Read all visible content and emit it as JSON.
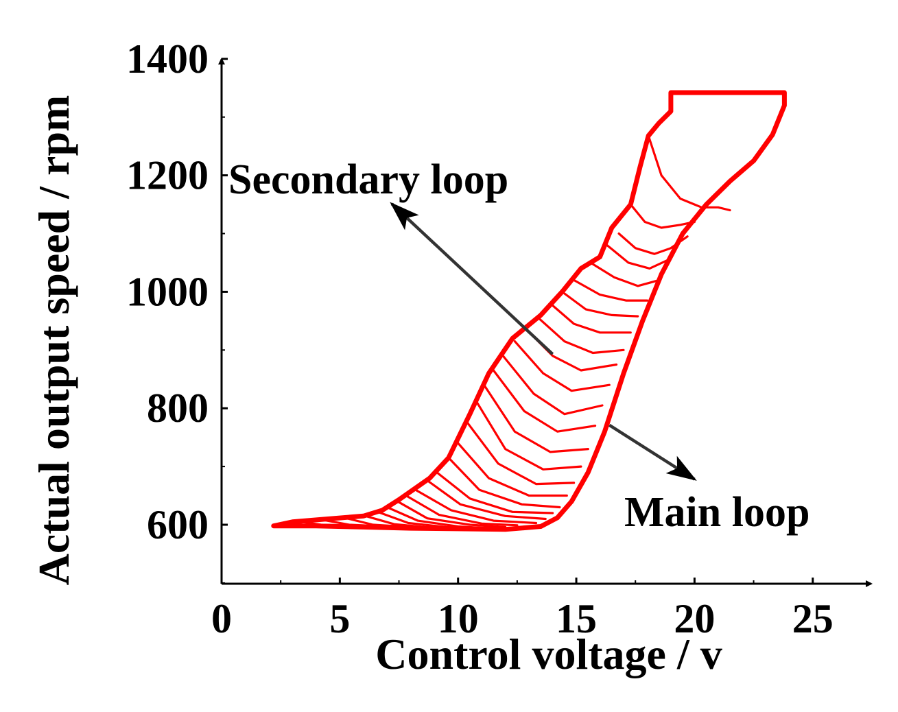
{
  "chart_data": {
    "type": "line",
    "title": "",
    "xlabel": "Control voltage / v",
    "ylabel": "Actual output speed  / rpm",
    "xlim": [
      0,
      27
    ],
    "ylim": [
      500,
      1400
    ],
    "xticks": [
      {
        "value": 0,
        "label": "0"
      },
      {
        "value": 5,
        "label": "5"
      },
      {
        "value": 10,
        "label": "10"
      },
      {
        "value": 15,
        "label": "15"
      },
      {
        "value": 20,
        "label": "20"
      },
      {
        "value": 25,
        "label": "25"
      }
    ],
    "yticks": [
      {
        "value": 600,
        "label": "600"
      },
      {
        "value": 800,
        "label": "800"
      },
      {
        "value": 1000,
        "label": "1000"
      },
      {
        "value": 1200,
        "label": "1200"
      },
      {
        "value": 1400,
        "label": "1400"
      }
    ],
    "grid": false,
    "line_color": "#ff0000",
    "annotations": [
      {
        "text": "Secondary loop",
        "arrow_from": [
          14,
          893
        ],
        "arrow_to": [
          7.2,
          1151
        ]
      },
      {
        "text": "Main loop",
        "arrow_from": [
          16.4,
          771
        ],
        "arrow_to": [
          20,
          678
        ]
      }
    ],
    "series": [
      {
        "name": "Main loop",
        "role": "main",
        "points": [
          [
            2.2,
            598
          ],
          [
            4,
            598
          ],
          [
            6,
            596
          ],
          [
            8,
            594
          ],
          [
            10,
            593
          ],
          [
            12,
            592
          ],
          [
            13.5,
            597
          ],
          [
            14.2,
            612
          ],
          [
            14.8,
            640
          ],
          [
            15.5,
            690
          ],
          [
            16.2,
            760
          ],
          [
            17,
            860
          ],
          [
            17.8,
            950
          ],
          [
            18.6,
            1030
          ],
          [
            19.5,
            1100
          ],
          [
            20.5,
            1150
          ],
          [
            21.5,
            1190
          ],
          [
            22.5,
            1225
          ],
          [
            23.3,
            1270
          ],
          [
            23.8,
            1320
          ],
          [
            23.8,
            1342
          ],
          [
            21.5,
            1342
          ],
          [
            19,
            1342
          ],
          [
            19,
            1310
          ],
          [
            18.5,
            1290
          ],
          [
            18.05,
            1268
          ],
          [
            17.7,
            1215
          ],
          [
            17.3,
            1150
          ],
          [
            16.5,
            1110
          ],
          [
            16,
            1060
          ],
          [
            15.2,
            1040
          ],
          [
            14.4,
            1000
          ],
          [
            13.5,
            960
          ],
          [
            12.3,
            920
          ],
          [
            11.3,
            860
          ],
          [
            10.5,
            790
          ],
          [
            9.6,
            715
          ],
          [
            8.8,
            680
          ],
          [
            7.5,
            643
          ],
          [
            6.8,
            625
          ],
          [
            6,
            615
          ],
          [
            4.5,
            610
          ],
          [
            3,
            605
          ],
          [
            2.2,
            598
          ]
        ]
      },
      {
        "name": "Secondary loop 1",
        "role": "secondary",
        "points": [
          [
            18.05,
            1268
          ],
          [
            18.6,
            1200
          ],
          [
            19.4,
            1160
          ],
          [
            20.3,
            1145
          ],
          [
            21,
            1145
          ],
          [
            21.5,
            1140
          ]
        ]
      },
      {
        "name": "Secondary loop 2",
        "role": "secondary",
        "points": [
          [
            17.3,
            1150
          ],
          [
            17.9,
            1120
          ],
          [
            18.6,
            1110
          ],
          [
            19.4,
            1115
          ],
          [
            20,
            1120
          ]
        ]
      },
      {
        "name": "Secondary loop 3",
        "role": "secondary",
        "points": [
          [
            16.8,
            1100
          ],
          [
            17.5,
            1075
          ],
          [
            18.3,
            1065
          ],
          [
            19,
            1075
          ],
          [
            19.7,
            1095
          ]
        ]
      },
      {
        "name": "Secondary loop 4",
        "role": "secondary",
        "points": [
          [
            16.3,
            1080
          ],
          [
            17.2,
            1050
          ],
          [
            18.1,
            1040
          ],
          [
            18.9,
            1055
          ]
        ]
      },
      {
        "name": "Secondary loop 5",
        "role": "secondary",
        "points": [
          [
            15.6,
            1050
          ],
          [
            16.6,
            1025
          ],
          [
            17.6,
            1010
          ],
          [
            18.5,
            1020
          ]
        ]
      },
      {
        "name": "Secondary loop 6",
        "role": "secondary",
        "points": [
          [
            14.9,
            1020
          ],
          [
            16,
            995
          ],
          [
            17.1,
            985
          ],
          [
            18,
            985
          ]
        ]
      },
      {
        "name": "Secondary loop 7",
        "role": "secondary",
        "points": [
          [
            14.4,
            1000
          ],
          [
            15.4,
            970
          ],
          [
            16.5,
            960
          ],
          [
            17.6,
            958
          ]
        ]
      },
      {
        "name": "Secondary loop 8",
        "role": "secondary",
        "points": [
          [
            13.9,
            980
          ],
          [
            14.9,
            945
          ],
          [
            16,
            930
          ],
          [
            17.3,
            930
          ]
        ]
      },
      {
        "name": "Secondary loop 9",
        "role": "secondary",
        "points": [
          [
            13.4,
            955
          ],
          [
            14.5,
            915
          ],
          [
            15.7,
            895
          ],
          [
            17,
            900
          ]
        ]
      },
      {
        "name": "Secondary loop 10",
        "role": "secondary",
        "points": [
          [
            12.9,
            935
          ],
          [
            14,
            890
          ],
          [
            15.2,
            865
          ],
          [
            16.7,
            875
          ]
        ]
      },
      {
        "name": "Secondary loop 11",
        "role": "secondary",
        "points": [
          [
            12.4,
            915
          ],
          [
            13.6,
            860
          ],
          [
            14.8,
            830
          ],
          [
            16.4,
            840
          ]
        ]
      },
      {
        "name": "Secondary loop 12",
        "role": "secondary",
        "points": [
          [
            11.9,
            890
          ],
          [
            13.2,
            825
          ],
          [
            14.5,
            790
          ],
          [
            16.1,
            805
          ]
        ]
      },
      {
        "name": "Secondary loop 13",
        "role": "secondary",
        "points": [
          [
            11.5,
            865
          ],
          [
            12.8,
            795
          ],
          [
            14.2,
            760
          ],
          [
            15.8,
            770
          ]
        ]
      },
      {
        "name": "Secondary loop 14",
        "role": "secondary",
        "points": [
          [
            11.1,
            840
          ],
          [
            12.4,
            760
          ],
          [
            13.9,
            725
          ],
          [
            15.5,
            730
          ]
        ]
      },
      {
        "name": "Secondary loop 15",
        "role": "secondary",
        "points": [
          [
            10.8,
            810
          ],
          [
            12,
            730
          ],
          [
            13.6,
            695
          ],
          [
            15.2,
            700
          ]
        ]
      },
      {
        "name": "Secondary loop 16",
        "role": "secondary",
        "points": [
          [
            10.4,
            775
          ],
          [
            11.7,
            705
          ],
          [
            13.3,
            670
          ],
          [
            14.9,
            672
          ]
        ]
      },
      {
        "name": "Secondary loop 17",
        "role": "secondary",
        "points": [
          [
            10,
            740
          ],
          [
            11.3,
            680
          ],
          [
            13,
            650
          ],
          [
            14.6,
            650
          ]
        ]
      },
      {
        "name": "Secondary loop 18",
        "role": "secondary",
        "points": [
          [
            9.6,
            715
          ],
          [
            10.9,
            660
          ],
          [
            12.7,
            635
          ],
          [
            14.3,
            630
          ]
        ]
      },
      {
        "name": "Secondary loop 19",
        "role": "secondary",
        "points": [
          [
            9.1,
            690
          ],
          [
            10.5,
            645
          ],
          [
            12.3,
            622
          ],
          [
            14,
            620
          ]
        ]
      },
      {
        "name": "Secondary loop 20",
        "role": "secondary",
        "points": [
          [
            8.7,
            676
          ],
          [
            10.1,
            635
          ],
          [
            12,
            615
          ],
          [
            13.7,
            610
          ]
        ]
      },
      {
        "name": "Secondary loop 21",
        "role": "secondary",
        "points": [
          [
            8.2,
            660
          ],
          [
            9.7,
            625
          ],
          [
            11.5,
            607
          ],
          [
            13.3,
            603
          ]
        ]
      },
      {
        "name": "Secondary loop 22",
        "role": "secondary",
        "points": [
          [
            7.8,
            650
          ],
          [
            9.2,
            617
          ],
          [
            11,
            602
          ],
          [
            12.5,
            599
          ]
        ]
      },
      {
        "name": "Secondary loop 23",
        "role": "secondary",
        "points": [
          [
            7.4,
            641
          ],
          [
            8.7,
            611
          ],
          [
            10.5,
            600
          ],
          [
            12,
            596
          ]
        ]
      },
      {
        "name": "Secondary loop 24",
        "role": "secondary",
        "points": [
          [
            7,
            630
          ],
          [
            8.3,
            607
          ],
          [
            10,
            597
          ],
          [
            11.3,
            594
          ]
        ]
      },
      {
        "name": "Secondary loop 25",
        "role": "secondary",
        "points": [
          [
            6.6,
            622
          ],
          [
            7.9,
            603
          ],
          [
            9.5,
            596
          ],
          [
            10.5,
            594
          ]
        ]
      },
      {
        "name": "Secondary loop 26",
        "role": "secondary",
        "points": [
          [
            6,
            616
          ],
          [
            7.3,
            601
          ],
          [
            8.6,
            596
          ],
          [
            9.5,
            595
          ]
        ]
      },
      {
        "name": "Secondary loop 27",
        "role": "secondary",
        "points": [
          [
            5.2,
            612
          ],
          [
            6.4,
            600
          ],
          [
            7.6,
            597
          ]
        ]
      },
      {
        "name": "Secondary loop 28",
        "role": "secondary",
        "points": [
          [
            4.2,
            609
          ],
          [
            5.4,
            600
          ],
          [
            6.5,
            598
          ]
        ]
      },
      {
        "name": "Secondary loop 29",
        "role": "secondary",
        "points": [
          [
            3.2,
            606
          ],
          [
            4.2,
            600
          ],
          [
            5.2,
            599
          ]
        ]
      }
    ]
  }
}
